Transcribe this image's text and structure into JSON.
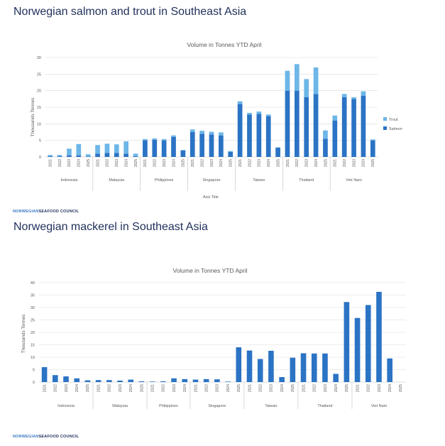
{
  "slide1": {
    "title": "Norwegian salmon and trout in Southeast Asia",
    "brand_part1": "NORWEGIAN",
    "brand_part2": "SEAFOOD COUNCIL"
  },
  "slide2": {
    "title": "Norwegian mackerel in Southeast Asia",
    "brand_part1": "NORWEGIAN",
    "brand_part2": "SEAFOOD COUNCIL"
  },
  "colors": {
    "salmon": "#2b73c4",
    "trout": "#6db6e8",
    "mackerel": "#2b73c4",
    "grid": "#d9d9d9",
    "axis": "#bfbfbf",
    "text": "#595959"
  },
  "chart_data": [
    {
      "type": "bar",
      "stacked": true,
      "title": "Volume in Tonnes YTD April",
      "ylabel": "Thousands Tonnes",
      "xlabel": "Axis Title",
      "ylim": [
        0,
        30
      ],
      "yticks": [
        0,
        5,
        10,
        15,
        20,
        25,
        30
      ],
      "grid": true,
      "legend_position": "right",
      "groups": [
        {
          "name": "Indonesia",
          "categories": [
            "2021",
            "2022",
            "2023",
            "2024",
            "2025"
          ]
        },
        {
          "name": "Malaysia",
          "categories": [
            "2021",
            "2022",
            "2023",
            "2024",
            "2025"
          ]
        },
        {
          "name": "Philippines",
          "categories": [
            "2021",
            "2022",
            "2023",
            "2024",
            "2025"
          ]
        },
        {
          "name": "Singapore",
          "categories": [
            "2021",
            "2022",
            "2023",
            "2024",
            "2025"
          ]
        },
        {
          "name": "Taiwan",
          "categories": [
            "2021",
            "2022",
            "2023",
            "2024",
            "2025"
          ]
        },
        {
          "name": "Thailand",
          "categories": [
            "2021",
            "2022",
            "2023",
            "2024",
            "2025"
          ]
        },
        {
          "name": "Viet Nam",
          "categories": [
            "2021",
            "2022",
            "2023",
            "2024",
            "2025"
          ]
        }
      ],
      "series": [
        {
          "name": "Salmon",
          "values": [
            0.2,
            0.2,
            0.5,
            0.5,
            0.1,
            1.0,
            1.2,
            1.2,
            1.0,
            0.2,
            5.0,
            5.2,
            5.0,
            6.0,
            2.0,
            7.5,
            7.0,
            6.8,
            6.5,
            1.5,
            16.0,
            12.8,
            13.0,
            12.3,
            2.8,
            20.0,
            20.0,
            18.0,
            19.0,
            5.5,
            11.0,
            18.0,
            17.5,
            18.5,
            5.0
          ]
        },
        {
          "name": "Trout",
          "values": [
            0.4,
            0.4,
            2.0,
            3.4,
            0.7,
            2.6,
            2.8,
            2.6,
            3.7,
            0.8,
            0.4,
            0.4,
            0.4,
            0.5,
            0.1,
            0.8,
            0.9,
            0.8,
            0.9,
            0.3,
            0.8,
            0.5,
            0.7,
            0.5,
            0.1,
            6.0,
            8.0,
            5.5,
            8.0,
            2.5,
            1.5,
            1.0,
            0.5,
            1.3,
            0.3
          ]
        }
      ]
    },
    {
      "type": "bar",
      "title": "Volume in Tonnes YTD April",
      "ylabel": "Thousands Tonnes",
      "xlabel": "",
      "ylim": [
        0,
        40
      ],
      "yticks": [
        0,
        5,
        10,
        15,
        20,
        25,
        30,
        35,
        40
      ],
      "grid": true,
      "groups": [
        {
          "name": "Indonesia",
          "categories": [
            "2021",
            "2022",
            "2023",
            "2024",
            "2025"
          ]
        },
        {
          "name": "Malaysia",
          "categories": [
            "2021",
            "2022",
            "2023",
            "2024",
            "2025"
          ]
        },
        {
          "name": "Philippines",
          "categories": [
            "2021",
            "2022",
            "2023",
            "2024"
          ]
        },
        {
          "name": "Singapore",
          "categories": [
            "2021",
            "2022",
            "2023",
            "2024",
            "2025"
          ]
        },
        {
          "name": "Taiwan",
          "categories": [
            "2021",
            "2022",
            "2023",
            "2024",
            "2025"
          ]
        },
        {
          "name": "Thailand",
          "categories": [
            "2021",
            "2022",
            "2023",
            "2024",
            "2025"
          ]
        },
        {
          "name": "Viet Nam",
          "categories": [
            "2021",
            "2022",
            "2023",
            "2024",
            "2025"
          ]
        }
      ],
      "series": [
        {
          "name": "Mackerel",
          "values": [
            6.0,
            2.8,
            2.3,
            1.5,
            0.7,
            0.8,
            0.8,
            0.6,
            1.0,
            0.3,
            0.2,
            0.3,
            1.5,
            1.2,
            1.0,
            1.2,
            1.1,
            0.2,
            14.0,
            12.7,
            9.3,
            12.6,
            2.0,
            9.8,
            11.6,
            11.5,
            11.5,
            3.3,
            32.2,
            25.8,
            31.0,
            36.3,
            9.5
          ]
        }
      ]
    }
  ]
}
